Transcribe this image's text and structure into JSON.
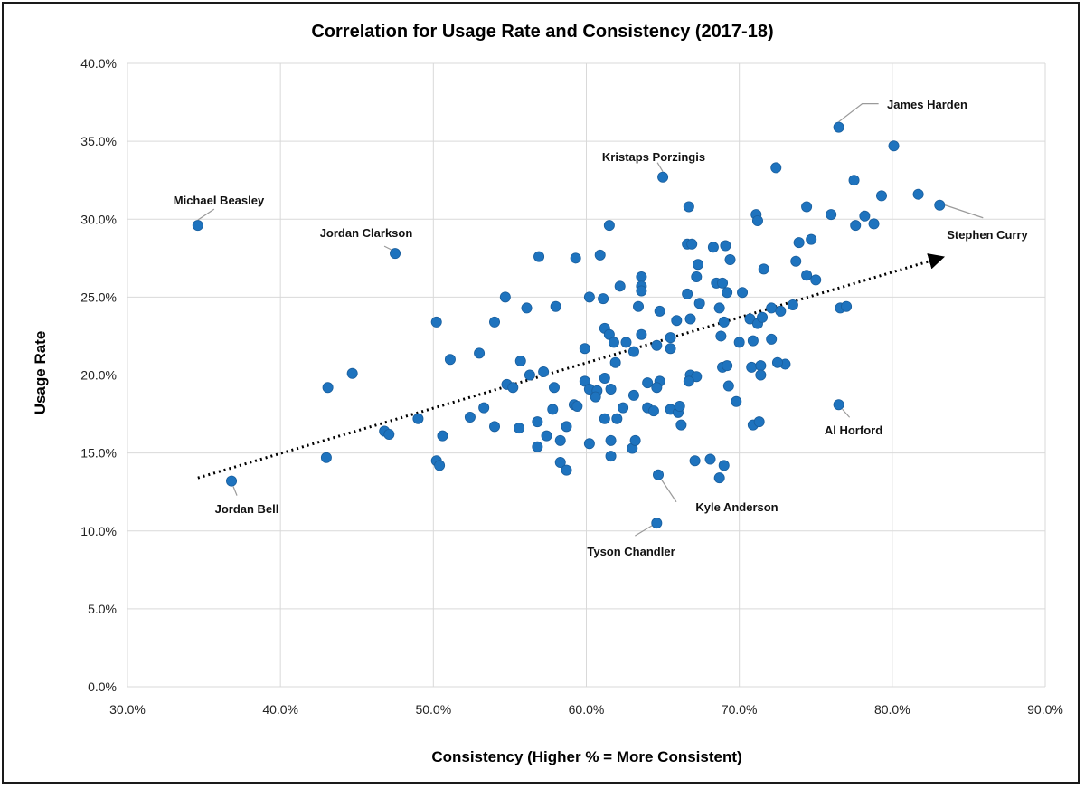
{
  "chart_data": {
    "type": "scatter",
    "title": "Correlation for Usage Rate and Consistency (2017-18)",
    "xlabel": "Consistency (Higher % = More Consistent)",
    "ylabel": "Usage Rate",
    "xlim": [
      30,
      90
    ],
    "ylim": [
      0,
      40
    ],
    "x_ticks": [
      30,
      40,
      50,
      60,
      70,
      80,
      90
    ],
    "y_ticks": [
      0,
      5,
      10,
      15,
      20,
      25,
      30,
      35,
      40
    ],
    "x_tick_labels": [
      "30.0%",
      "40.0%",
      "50.0%",
      "60.0%",
      "70.0%",
      "80.0%",
      "90.0%"
    ],
    "y_tick_labels": [
      "0.0%",
      "5.0%",
      "10.0%",
      "15.0%",
      "20.0%",
      "25.0%",
      "30.0%",
      "35.0%",
      "40.0%"
    ],
    "grid": true,
    "trendline": {
      "style": "dotted",
      "from": [
        34.6,
        13.4
      ],
      "to": [
        83.1,
        27.5
      ]
    },
    "annotations": [
      {
        "label": "James Harden",
        "x": 76.5,
        "y": 35.9
      },
      {
        "label": "Kristaps Porzingis",
        "x": 65.0,
        "y": 32.7
      },
      {
        "label": "Michael Beasley",
        "x": 34.6,
        "y": 29.6
      },
      {
        "label": "Jordan Clarkson",
        "x": 47.5,
        "y": 27.8
      },
      {
        "label": "Stephen Curry",
        "x": 83.1,
        "y": 30.9
      },
      {
        "label": "Al Horford",
        "x": 76.5,
        "y": 18.1
      },
      {
        "label": "Jordan Bell",
        "x": 36.8,
        "y": 13.2
      },
      {
        "label": "Kyle Anderson",
        "x": 64.7,
        "y": 13.6
      },
      {
        "label": "Tyson Chandler",
        "x": 64.6,
        "y": 10.5
      }
    ],
    "points": [
      [
        76.5,
        35.9
      ],
      [
        65.0,
        32.7
      ],
      [
        34.6,
        29.6
      ],
      [
        47.5,
        27.8
      ],
      [
        83.1,
        30.9
      ],
      [
        76.5,
        18.1
      ],
      [
        36.8,
        13.2
      ],
      [
        64.7,
        13.6
      ],
      [
        64.6,
        10.5
      ],
      [
        80.1,
        34.7
      ],
      [
        72.4,
        33.3
      ],
      [
        77.5,
        32.5
      ],
      [
        81.7,
        31.6
      ],
      [
        79.3,
        31.5
      ],
      [
        66.7,
        30.8
      ],
      [
        71.1,
        30.3
      ],
      [
        74.4,
        30.8
      ],
      [
        76.0,
        30.3
      ],
      [
        78.2,
        30.2
      ],
      [
        61.5,
        29.6
      ],
      [
        71.2,
        29.9
      ],
      [
        77.6,
        29.6
      ],
      [
        78.8,
        29.7
      ],
      [
        60.9,
        27.7
      ],
      [
        59.3,
        27.5
      ],
      [
        56.9,
        27.6
      ],
      [
        66.6,
        28.4
      ],
      [
        66.9,
        28.4
      ],
      [
        68.3,
        28.2
      ],
      [
        69.1,
        28.3
      ],
      [
        73.9,
        28.5
      ],
      [
        74.7,
        28.7
      ],
      [
        67.3,
        27.1
      ],
      [
        69.4,
        27.4
      ],
      [
        73.7,
        27.3
      ],
      [
        71.6,
        26.8
      ],
      [
        63.6,
        26.3
      ],
      [
        67.2,
        26.3
      ],
      [
        74.4,
        26.4
      ],
      [
        75.0,
        26.1
      ],
      [
        68.5,
        25.9
      ],
      [
        68.9,
        25.9
      ],
      [
        62.2,
        25.7
      ],
      [
        63.6,
        25.7
      ],
      [
        63.6,
        25.4
      ],
      [
        66.6,
        25.2
      ],
      [
        69.2,
        25.3
      ],
      [
        70.2,
        25.3
      ],
      [
        54.7,
        25.0
      ],
      [
        60.2,
        25.0
      ],
      [
        61.1,
        24.9
      ],
      [
        58.0,
        24.4
      ],
      [
        56.1,
        24.3
      ],
      [
        63.4,
        24.4
      ],
      [
        67.4,
        24.6
      ],
      [
        68.7,
        24.3
      ],
      [
        72.1,
        24.3
      ],
      [
        72.7,
        24.1
      ],
      [
        73.5,
        24.5
      ],
      [
        76.6,
        24.3
      ],
      [
        77.0,
        24.4
      ],
      [
        64.8,
        24.1
      ],
      [
        50.2,
        23.4
      ],
      [
        54.0,
        23.4
      ],
      [
        66.8,
        23.6
      ],
      [
        65.9,
        23.5
      ],
      [
        69.0,
        23.4
      ],
      [
        70.7,
        23.6
      ],
      [
        71.2,
        23.3
      ],
      [
        71.5,
        23.7
      ],
      [
        61.2,
        23.0
      ],
      [
        61.5,
        22.6
      ],
      [
        63.6,
        22.6
      ],
      [
        62.6,
        22.1
      ],
      [
        61.8,
        22.1
      ],
      [
        65.5,
        22.4
      ],
      [
        68.8,
        22.5
      ],
      [
        70.0,
        22.1
      ],
      [
        70.9,
        22.2
      ],
      [
        72.1,
        22.3
      ],
      [
        59.9,
        21.7
      ],
      [
        64.6,
        21.9
      ],
      [
        63.1,
        21.5
      ],
      [
        65.5,
        21.7
      ],
      [
        53.0,
        21.4
      ],
      [
        51.1,
        21.0
      ],
      [
        55.7,
        20.9
      ],
      [
        61.9,
        20.8
      ],
      [
        57.2,
        20.2
      ],
      [
        44.7,
        20.1
      ],
      [
        56.3,
        20.0
      ],
      [
        61.2,
        19.8
      ],
      [
        64.0,
        19.5
      ],
      [
        64.8,
        19.6
      ],
      [
        66.8,
        20.0
      ],
      [
        67.2,
        19.9
      ],
      [
        68.9,
        20.5
      ],
      [
        69.2,
        20.6
      ],
      [
        70.8,
        20.5
      ],
      [
        71.4,
        20.6
      ],
      [
        73.0,
        20.7
      ],
      [
        72.5,
        20.8
      ],
      [
        71.4,
        20.0
      ],
      [
        54.8,
        19.4
      ],
      [
        55.2,
        19.2
      ],
      [
        57.9,
        19.2
      ],
      [
        59.9,
        19.6
      ],
      [
        60.2,
        19.1
      ],
      [
        60.7,
        19.0
      ],
      [
        61.6,
        19.1
      ],
      [
        64.6,
        19.2
      ],
      [
        66.7,
        19.6
      ],
      [
        69.3,
        19.3
      ],
      [
        43.1,
        19.2
      ],
      [
        53.3,
        17.9
      ],
      [
        52.4,
        17.3
      ],
      [
        49.0,
        17.2
      ],
      [
        54.0,
        16.7
      ],
      [
        55.6,
        16.6
      ],
      [
        56.8,
        17.0
      ],
      [
        57.8,
        17.8
      ],
      [
        58.7,
        16.7
      ],
      [
        59.2,
        18.1
      ],
      [
        59.4,
        18.0
      ],
      [
        60.6,
        18.6
      ],
      [
        61.2,
        17.2
      ],
      [
        62.0,
        17.2
      ],
      [
        62.4,
        17.9
      ],
      [
        63.1,
        18.7
      ],
      [
        64.0,
        17.9
      ],
      [
        64.4,
        17.7
      ],
      [
        65.5,
        17.8
      ],
      [
        66.0,
        17.6
      ],
      [
        66.1,
        18.0
      ],
      [
        66.2,
        16.8
      ],
      [
        69.8,
        18.3
      ],
      [
        70.9,
        16.8
      ],
      [
        71.3,
        17.0
      ],
      [
        46.8,
        16.4
      ],
      [
        47.1,
        16.2
      ],
      [
        50.6,
        16.1
      ],
      [
        43.0,
        14.7
      ],
      [
        50.2,
        14.5
      ],
      [
        50.4,
        14.2
      ],
      [
        56.8,
        15.4
      ],
      [
        57.4,
        16.1
      ],
      [
        58.3,
        15.8
      ],
      [
        60.2,
        15.6
      ],
      [
        61.6,
        15.8
      ],
      [
        63.0,
        15.3
      ],
      [
        63.2,
        15.8
      ],
      [
        58.3,
        14.4
      ],
      [
        58.7,
        13.9
      ],
      [
        61.6,
        14.8
      ],
      [
        67.1,
        14.5
      ],
      [
        68.1,
        14.6
      ],
      [
        68.7,
        13.4
      ],
      [
        69.0,
        14.2
      ]
    ]
  }
}
